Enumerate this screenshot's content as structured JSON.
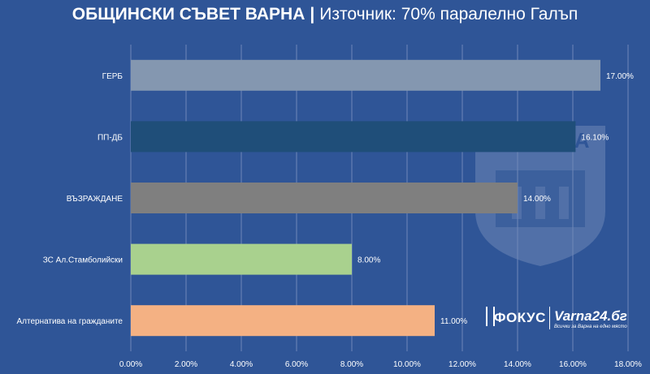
{
  "header": {
    "title_main": "ОБЩИНСКИ СЪВЕТ ВАРНА",
    "separator": "|",
    "title_source": "Източник: 70% паралелно Галъп"
  },
  "watermark": {
    "text": "ВАРНА"
  },
  "logos": {
    "fokus": "ФОКУС",
    "varna24": "Varna24.бг",
    "varna24_tagline": "Всички за Варна на едно място"
  },
  "colors": {
    "background": "#2f5597",
    "grid": "#6f88b8",
    "text": "#ffffff"
  },
  "chart_data": {
    "type": "bar",
    "orientation": "horizontal",
    "categories": [
      "ГЕРБ",
      "ПП-ДБ",
      "ВЪЗРАЖДАНЕ",
      "ЗС Ал.Стамболийски",
      "Алтернатива на гражданите"
    ],
    "values": [
      17.0,
      16.1,
      14.0,
      8.0,
      11.0
    ],
    "value_labels": [
      "17.00%",
      "16.10%",
      "14.00%",
      "8.00%",
      "11.00%"
    ],
    "bar_colors": [
      "#8497b0",
      "#1f4e79",
      "#7f7f7f",
      "#a9d18e",
      "#f4b183"
    ],
    "xlim": [
      0,
      18
    ],
    "x_ticks": [
      "0.00%",
      "2.00%",
      "4.00%",
      "6.00%",
      "8.00%",
      "10.00%",
      "12.00%",
      "14.00%",
      "16.00%",
      "18.00%"
    ],
    "grid": true,
    "legend": "none"
  }
}
